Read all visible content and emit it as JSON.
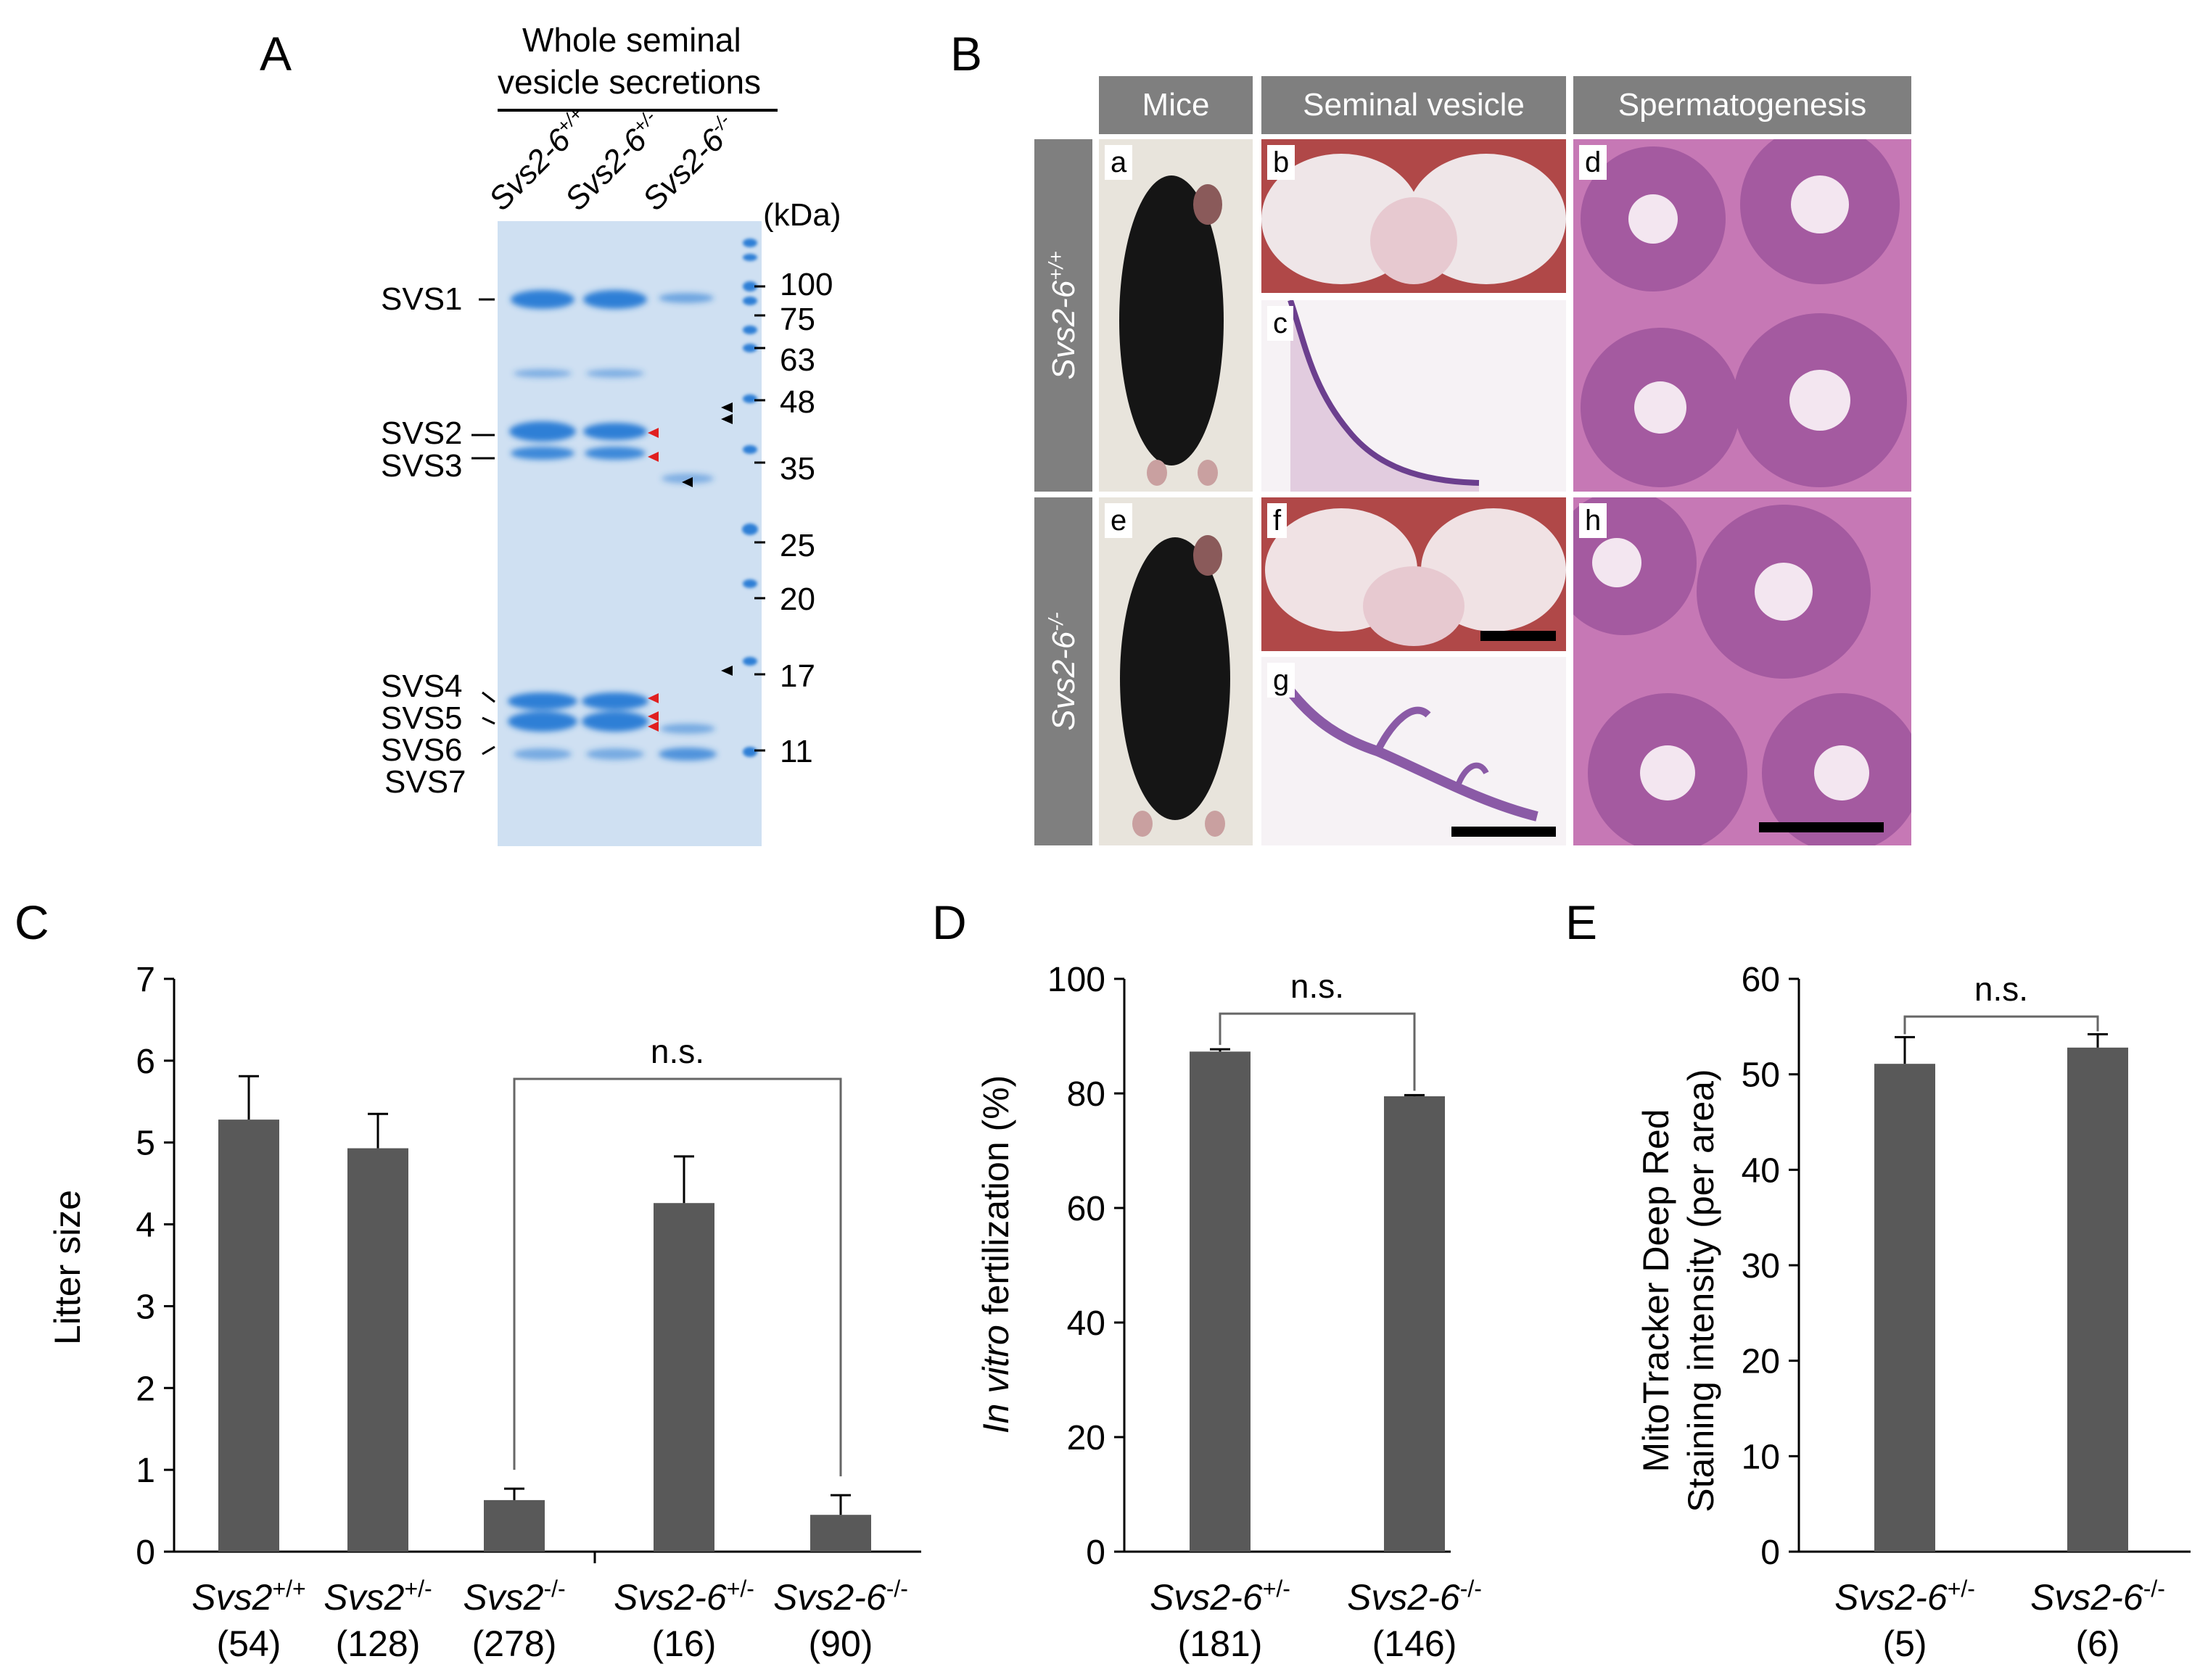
{
  "panels": {
    "a": "A",
    "b": "B",
    "c": "C",
    "d": "D",
    "e": "E"
  },
  "gel": {
    "header_line1": "Whole seminal",
    "header_line2": "vesicle secretions",
    "lanes": [
      {
        "base": "Svs2-6",
        "sup": "+/+"
      },
      {
        "base": "Svs2-6",
        "sup": "+/-"
      },
      {
        "base": "Svs2-6",
        "sup": "-/-"
      }
    ],
    "kda_label": "(kDa)",
    "markers": [
      "100",
      "75",
      "63",
      "48",
      "35",
      "25",
      "20",
      "17",
      "11"
    ],
    "bands": [
      "SVS1",
      "SVS2",
      "SVS3",
      "SVS4",
      "SVS5",
      "SVS6",
      "SVS7"
    ],
    "colors": {
      "gel_bg": "#cfe0f2",
      "band": "#2f7fd6",
      "arrow_red": "#e02020",
      "arrow_black": "#000000"
    }
  },
  "histology": {
    "column_headers": [
      "Mice",
      "Seminal vesicle",
      "Spermatogenesis"
    ],
    "rows": [
      {
        "base": "Svs2-6",
        "sup": "+/+"
      },
      {
        "base": "Svs2-6",
        "sup": "-/-"
      }
    ],
    "letters": [
      "a",
      "b",
      "c",
      "d",
      "e",
      "f",
      "g",
      "h"
    ],
    "colors": {
      "header": "#7f7f7f",
      "he_pink": "#d98fc6",
      "he_purple": "#6b3f8e"
    }
  },
  "chart_data": [
    {
      "type": "bar",
      "panel": "C",
      "ylabel": "Litter size",
      "ylim": [
        0,
        7
      ],
      "yticks": [
        "0",
        "1",
        "2",
        "3",
        "4",
        "5",
        "6",
        "7"
      ],
      "categories": [
        {
          "base": "Svs2",
          "sup": "+/+",
          "n": "(54)"
        },
        {
          "base": "Svs2",
          "sup": "+/-",
          "n": "(128)"
        },
        {
          "base": "Svs2",
          "sup": "-/-",
          "n": "(278)"
        },
        {
          "base": "Svs2-6",
          "sup": "+/-",
          "n": "(16)"
        },
        {
          "base": "Svs2-6",
          "sup": "-/-",
          "n": "(90)"
        }
      ],
      "values": [
        5.28,
        4.93,
        0.63,
        4.26,
        0.45
      ],
      "errors": [
        0.53,
        0.42,
        0.14,
        0.57,
        0.24
      ],
      "annotation": "n.s.",
      "bar_color": "#595959"
    },
    {
      "type": "bar",
      "panel": "D",
      "ylabel_italic": "In vitro",
      "ylabel_rest": " fertilization (%)",
      "ylim": [
        0,
        100
      ],
      "yticks": [
        "0",
        "20",
        "40",
        "60",
        "80",
        "100"
      ],
      "categories": [
        {
          "base": "Svs2-6",
          "sup": "+/-",
          "n": "(181)"
        },
        {
          "base": "Svs2-6",
          "sup": "-/-",
          "n": "(146)"
        }
      ],
      "values": [
        87.3,
        79.5
      ],
      "errors": [
        0.4,
        0.2
      ],
      "annotation": "n.s.",
      "bar_color": "#595959"
    },
    {
      "type": "bar",
      "panel": "E",
      "ylabel_line1": "MitoTracker Deep Red",
      "ylabel_line2": "Staining intensity (per area)",
      "ylim": [
        0,
        60
      ],
      "yticks": [
        "0",
        "10",
        "20",
        "30",
        "40",
        "50",
        "60"
      ],
      "categories": [
        {
          "base": "Svs2-6",
          "sup": "+/-",
          "n": "(5)"
        },
        {
          "base": "Svs2-6",
          "sup": "-/-",
          "n": "(6)"
        }
      ],
      "values": [
        51.1,
        52.8
      ],
      "errors": [
        2.8,
        1.4
      ],
      "annotation": "n.s.",
      "bar_color": "#595959"
    }
  ]
}
